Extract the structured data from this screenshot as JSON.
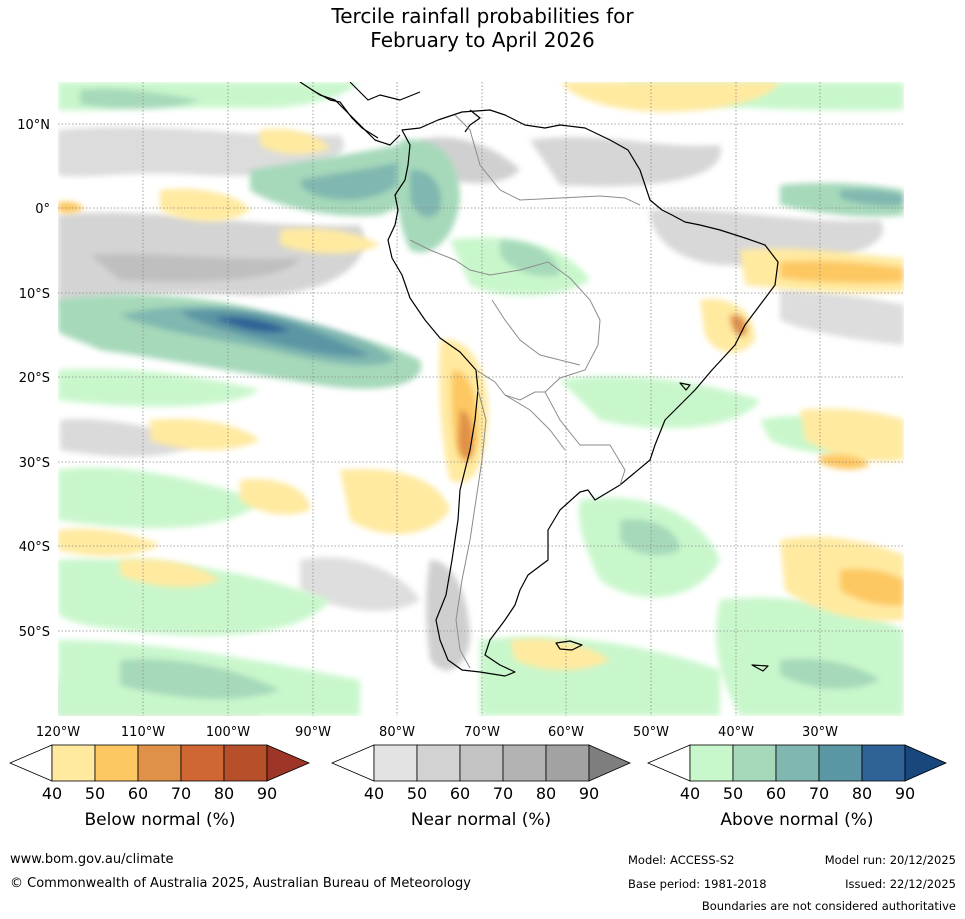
{
  "title": {
    "line1": "Tercile rainfall probabilities for",
    "line2": "February to April 2026"
  },
  "map": {
    "lat_labels": [
      "10°N",
      "0°",
      "10°S",
      "20°S",
      "30°S",
      "40°S",
      "50°S"
    ],
    "lon_labels": [
      "120°W",
      "110°W",
      "100°W",
      "90°W",
      "80°W",
      "70°W",
      "60°W",
      "50°W",
      "40°W",
      "30°W"
    ]
  },
  "colorbars": {
    "tick_labels": [
      "40",
      "50",
      "60",
      "70",
      "80",
      "90"
    ],
    "below": {
      "title": "Below normal (%)",
      "colors": [
        "#ffffff",
        "#ffeaa0",
        "#fdc862",
        "#e09148",
        "#cf6633",
        "#b84f2b",
        "#9d3626"
      ]
    },
    "near": {
      "title": "Near normal (%)",
      "colors": [
        "#ffffff",
        "#e3e3e3",
        "#d2d2d2",
        "#c3c3c3",
        "#b3b3b3",
        "#a2a2a2",
        "#7e7e7e"
      ]
    },
    "above": {
      "title": "Above normal (%)",
      "colors": [
        "#ffffff",
        "#c9f7cc",
        "#a6d9ba",
        "#80b7b0",
        "#5b96a4",
        "#2f6296",
        "#17477d"
      ]
    }
  },
  "footer": {
    "website": "www.bom.gov.au/climate",
    "copyright": "© Commonwealth of Australia 2025, Australian Bureau of Meteorology",
    "model": "Model: ACCESS-S2",
    "base_period": "Base period: 1981-2018",
    "model_run": "Model run: 20/12/2025",
    "issued": "Issued: 22/12/2025",
    "disclaimer": "Boundaries are not considered authoritative"
  }
}
